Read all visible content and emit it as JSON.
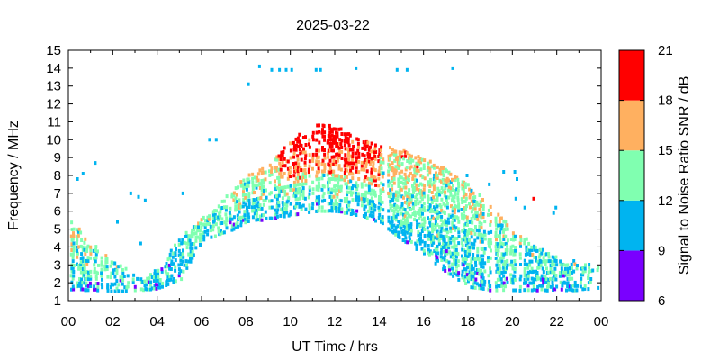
{
  "chart_data": {
    "type": "heatmap",
    "title": "2025-03-22",
    "xlabel": "UT Time / hrs",
    "ylabel": "Frequency / MHz",
    "colorbar_label": "Signal to Noise Ratio SNR / dB",
    "xlim": [
      0,
      24
    ],
    "ylim": [
      1,
      15
    ],
    "x_ticks": [
      "00",
      "02",
      "04",
      "06",
      "08",
      "10",
      "12",
      "14",
      "16",
      "18",
      "20",
      "22",
      "00"
    ],
    "y_ticks": [
      "1",
      "2",
      "3",
      "4",
      "5",
      "6",
      "7",
      "8",
      "9",
      "10",
      "11",
      "12",
      "13",
      "14",
      "15"
    ],
    "colorbar": {
      "ticks": [
        "6",
        "9",
        "12",
        "15",
        "18",
        "21"
      ],
      "bands": [
        {
          "min": 6,
          "max": 9,
          "color": "#7a00ff"
        },
        {
          "min": 9,
          "max": 12,
          "color": "#00b4f0"
        },
        {
          "min": 12,
          "max": 15,
          "color": "#80ffb0"
        },
        {
          "min": 15,
          "max": 18,
          "color": "#ffb060"
        },
        {
          "min": 18,
          "max": 21,
          "color": "#ff0000"
        }
      ]
    },
    "envelope": [
      {
        "h": 0,
        "lo": 1.6,
        "hi": 5.6,
        "snr": 13
      },
      {
        "h": 1,
        "lo": 1.6,
        "hi": 4.2,
        "snr": 13
      },
      {
        "h": 2,
        "lo": 1.5,
        "hi": 3.2,
        "snr": 12
      },
      {
        "h": 3,
        "lo": 1.6,
        "hi": 2.5,
        "snr": 10
      },
      {
        "h": 4,
        "lo": 1.7,
        "hi": 2.8,
        "snr": 10
      },
      {
        "h": 5,
        "lo": 2.2,
        "hi": 4.5,
        "snr": 11
      },
      {
        "h": 6,
        "lo": 4.4,
        "hi": 5.6,
        "snr": 12
      },
      {
        "h": 7,
        "lo": 4.8,
        "hi": 6.8,
        "snr": 12
      },
      {
        "h": 8,
        "lo": 5.4,
        "hi": 8.0,
        "snr": 13
      },
      {
        "h": 9,
        "lo": 5.6,
        "hi": 8.6,
        "snr": 14
      },
      {
        "h": 10,
        "lo": 5.8,
        "hi": 10.0,
        "snr": 16
      },
      {
        "h": 11,
        "lo": 6.0,
        "hi": 10.8,
        "snr": 18
      },
      {
        "h": 12,
        "lo": 6.0,
        "hi": 10.8,
        "snr": 18
      },
      {
        "h": 13,
        "lo": 5.8,
        "hi": 10.0,
        "snr": 16
      },
      {
        "h": 14,
        "lo": 5.4,
        "hi": 9.7,
        "snr": 15
      },
      {
        "h": 15,
        "lo": 4.4,
        "hi": 9.4,
        "snr": 15
      },
      {
        "h": 16,
        "lo": 3.6,
        "hi": 8.9,
        "snr": 14
      },
      {
        "h": 17,
        "lo": 2.6,
        "hi": 8.4,
        "snr": 13
      },
      {
        "h": 18,
        "lo": 1.8,
        "hi": 7.6,
        "snr": 13
      },
      {
        "h": 19,
        "lo": 1.6,
        "hi": 6.2,
        "snr": 13
      },
      {
        "h": 20,
        "lo": 1.6,
        "hi": 5.0,
        "snr": 12
      },
      {
        "h": 21,
        "lo": 1.6,
        "hi": 4.0,
        "snr": 11
      },
      {
        "h": 22,
        "lo": 1.6,
        "hi": 3.5,
        "snr": 11
      },
      {
        "h": 23,
        "lo": 1.6,
        "hi": 3.1,
        "snr": 11
      },
      {
        "h": 24,
        "lo": 1.7,
        "hi": 3.0,
        "snr": 11
      }
    ],
    "isolated_points": [
      {
        "x": 0.35,
        "y": 7.8,
        "snr": 10
      },
      {
        "x": 0.6,
        "y": 8.1,
        "snr": 10
      },
      {
        "x": 1.15,
        "y": 8.7,
        "snr": 10
      },
      {
        "x": 2.15,
        "y": 5.4,
        "snr": 10
      },
      {
        "x": 2.75,
        "y": 7.0,
        "snr": 10
      },
      {
        "x": 3.1,
        "y": 6.8,
        "snr": 10
      },
      {
        "x": 3.4,
        "y": 6.6,
        "snr": 10
      },
      {
        "x": 3.2,
        "y": 4.2,
        "snr": 10
      },
      {
        "x": 5.1,
        "y": 7.0,
        "snr": 10
      },
      {
        "x": 6.3,
        "y": 10.0,
        "snr": 10
      },
      {
        "x": 6.6,
        "y": 10.0,
        "snr": 10
      },
      {
        "x": 8.05,
        "y": 13.1,
        "snr": 10
      },
      {
        "x": 8.55,
        "y": 14.1,
        "snr": 10
      },
      {
        "x": 9.1,
        "y": 13.9,
        "snr": 10
      },
      {
        "x": 9.45,
        "y": 13.9,
        "snr": 10
      },
      {
        "x": 9.75,
        "y": 13.9,
        "snr": 10
      },
      {
        "x": 10.0,
        "y": 13.9,
        "snr": 10
      },
      {
        "x": 11.1,
        "y": 13.9,
        "snr": 10
      },
      {
        "x": 11.3,
        "y": 13.9,
        "snr": 10
      },
      {
        "x": 12.9,
        "y": 14.0,
        "snr": 10
      },
      {
        "x": 14.75,
        "y": 13.9,
        "snr": 10
      },
      {
        "x": 15.2,
        "y": 13.9,
        "snr": 10
      },
      {
        "x": 17.25,
        "y": 14.0,
        "snr": 10
      },
      {
        "x": 20.05,
        "y": 8.2,
        "snr": 10
      },
      {
        "x": 20.15,
        "y": 7.8,
        "snr": 10
      },
      {
        "x": 19.55,
        "y": 8.2,
        "snr": 10
      },
      {
        "x": 20.1,
        "y": 6.7,
        "snr": 10
      },
      {
        "x": 20.9,
        "y": 6.7,
        "snr": 19
      },
      {
        "x": 20.5,
        "y": 6.2,
        "snr": 10
      },
      {
        "x": 21.9,
        "y": 6.2,
        "snr": 10
      },
      {
        "x": 21.8,
        "y": 5.9,
        "snr": 10
      },
      {
        "x": 23.85,
        "y": 5.4,
        "snr": 10
      },
      {
        "x": 17.9,
        "y": 8.0,
        "snr": 10
      },
      {
        "x": 18.9,
        "y": 7.5,
        "snr": 10
      }
    ]
  }
}
